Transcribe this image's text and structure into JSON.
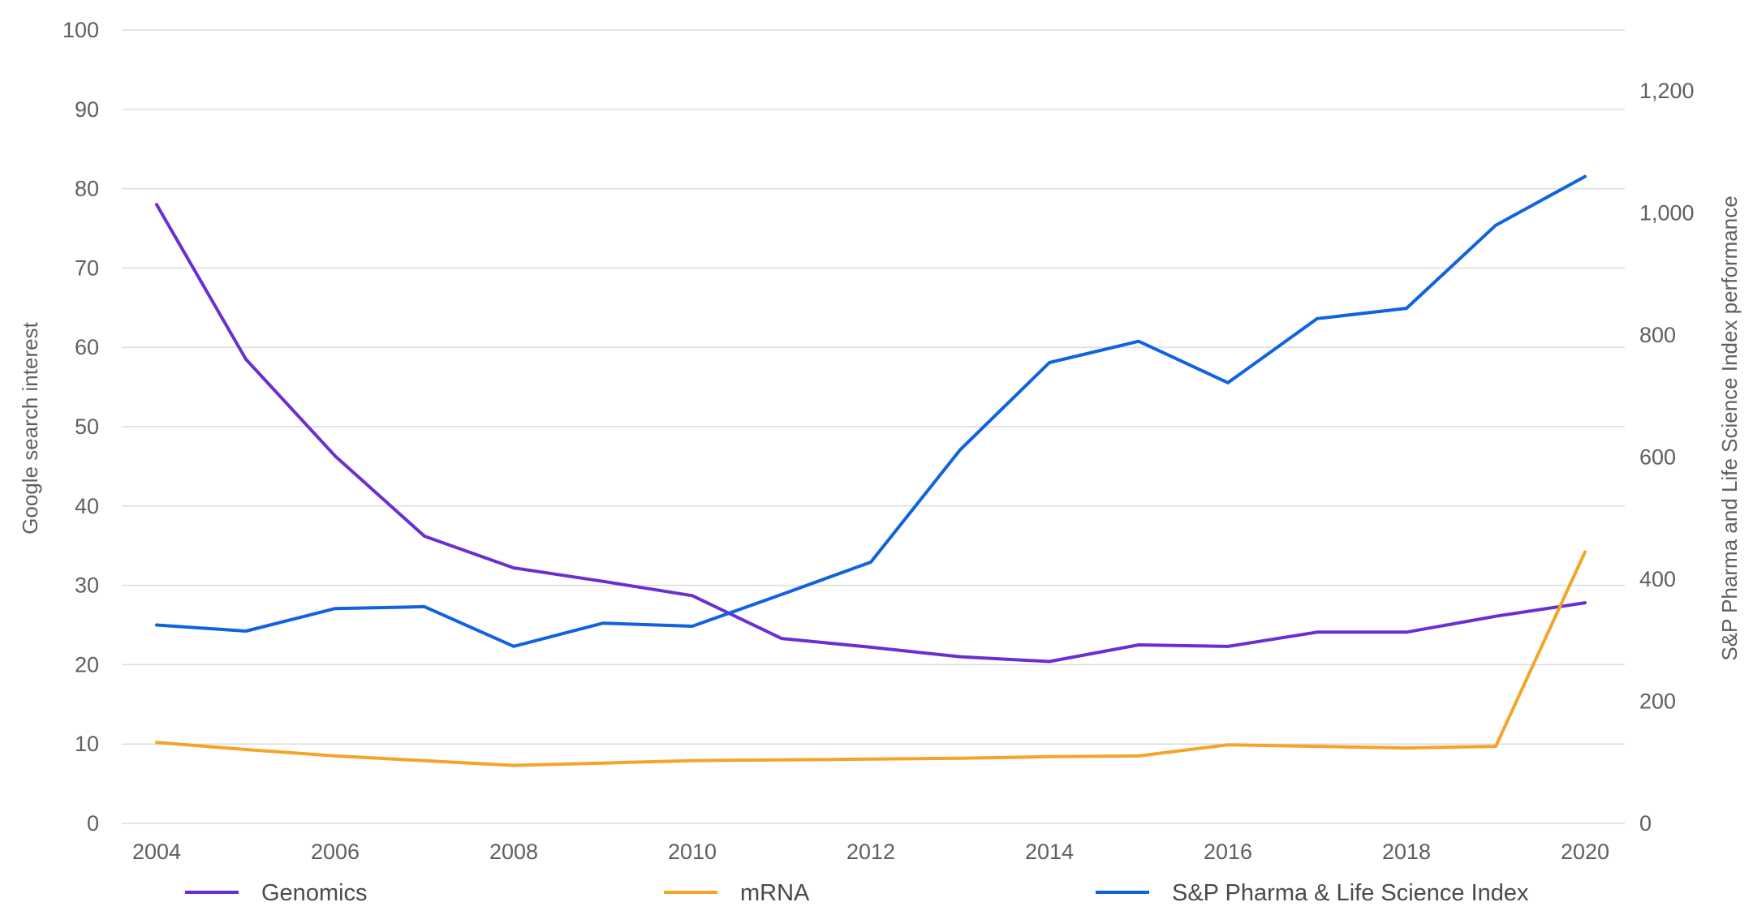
{
  "chart_data": {
    "type": "line",
    "x": [
      2004,
      2005,
      2006,
      2007,
      2008,
      2009,
      2010,
      2011,
      2012,
      2013,
      2014,
      2015,
      2016,
      2017,
      2018,
      2019,
      2020
    ],
    "x_ticks": [
      "2004",
      "2006",
      "2008",
      "2010",
      "2012",
      "2014",
      "2016",
      "2018",
      "2020"
    ],
    "xlim": [
      2004,
      2020
    ],
    "ylabel": "Google search interest",
    "ylim": [
      0,
      100
    ],
    "y_ticks": [
      "0",
      "10",
      "20",
      "30",
      "40",
      "50",
      "60",
      "70",
      "80",
      "90",
      "100"
    ],
    "y2label": "S&P Pharma and Life Science Index performance",
    "y2lim": [
      0,
      1300
    ],
    "y2_ticks": [
      "0",
      "200",
      "400",
      "600",
      "800",
      "1,000",
      "1,200"
    ],
    "grid": true,
    "legend_position": "bottom",
    "series": [
      {
        "name": "Genomics",
        "axis": "left",
        "color": "#6a2fd1",
        "values": [
          78,
          58.5,
          46.3,
          36.2,
          32.2,
          30.5,
          28.7,
          23.3,
          22.2,
          21.0,
          20.4,
          22.5,
          22.3,
          24.1,
          24.1,
          26.1,
          27.8
        ]
      },
      {
        "name": "mRNA",
        "axis": "left",
        "color": "#f4a429",
        "values": [
          10.2,
          9.3,
          8.5,
          7.9,
          7.3,
          7.6,
          7.9,
          8.0,
          8.1,
          8.2,
          8.4,
          8.5,
          9.9,
          9.7,
          9.5,
          9.7,
          34.2
        ]
      },
      {
        "name": "S&P Pharma & Life Science Index",
        "axis": "right",
        "color": "#0f63e0",
        "values": [
          325,
          315,
          352,
          355,
          290,
          328,
          323,
          375,
          428,
          612,
          755,
          790,
          722,
          827,
          844,
          980,
          1060
        ]
      }
    ]
  }
}
